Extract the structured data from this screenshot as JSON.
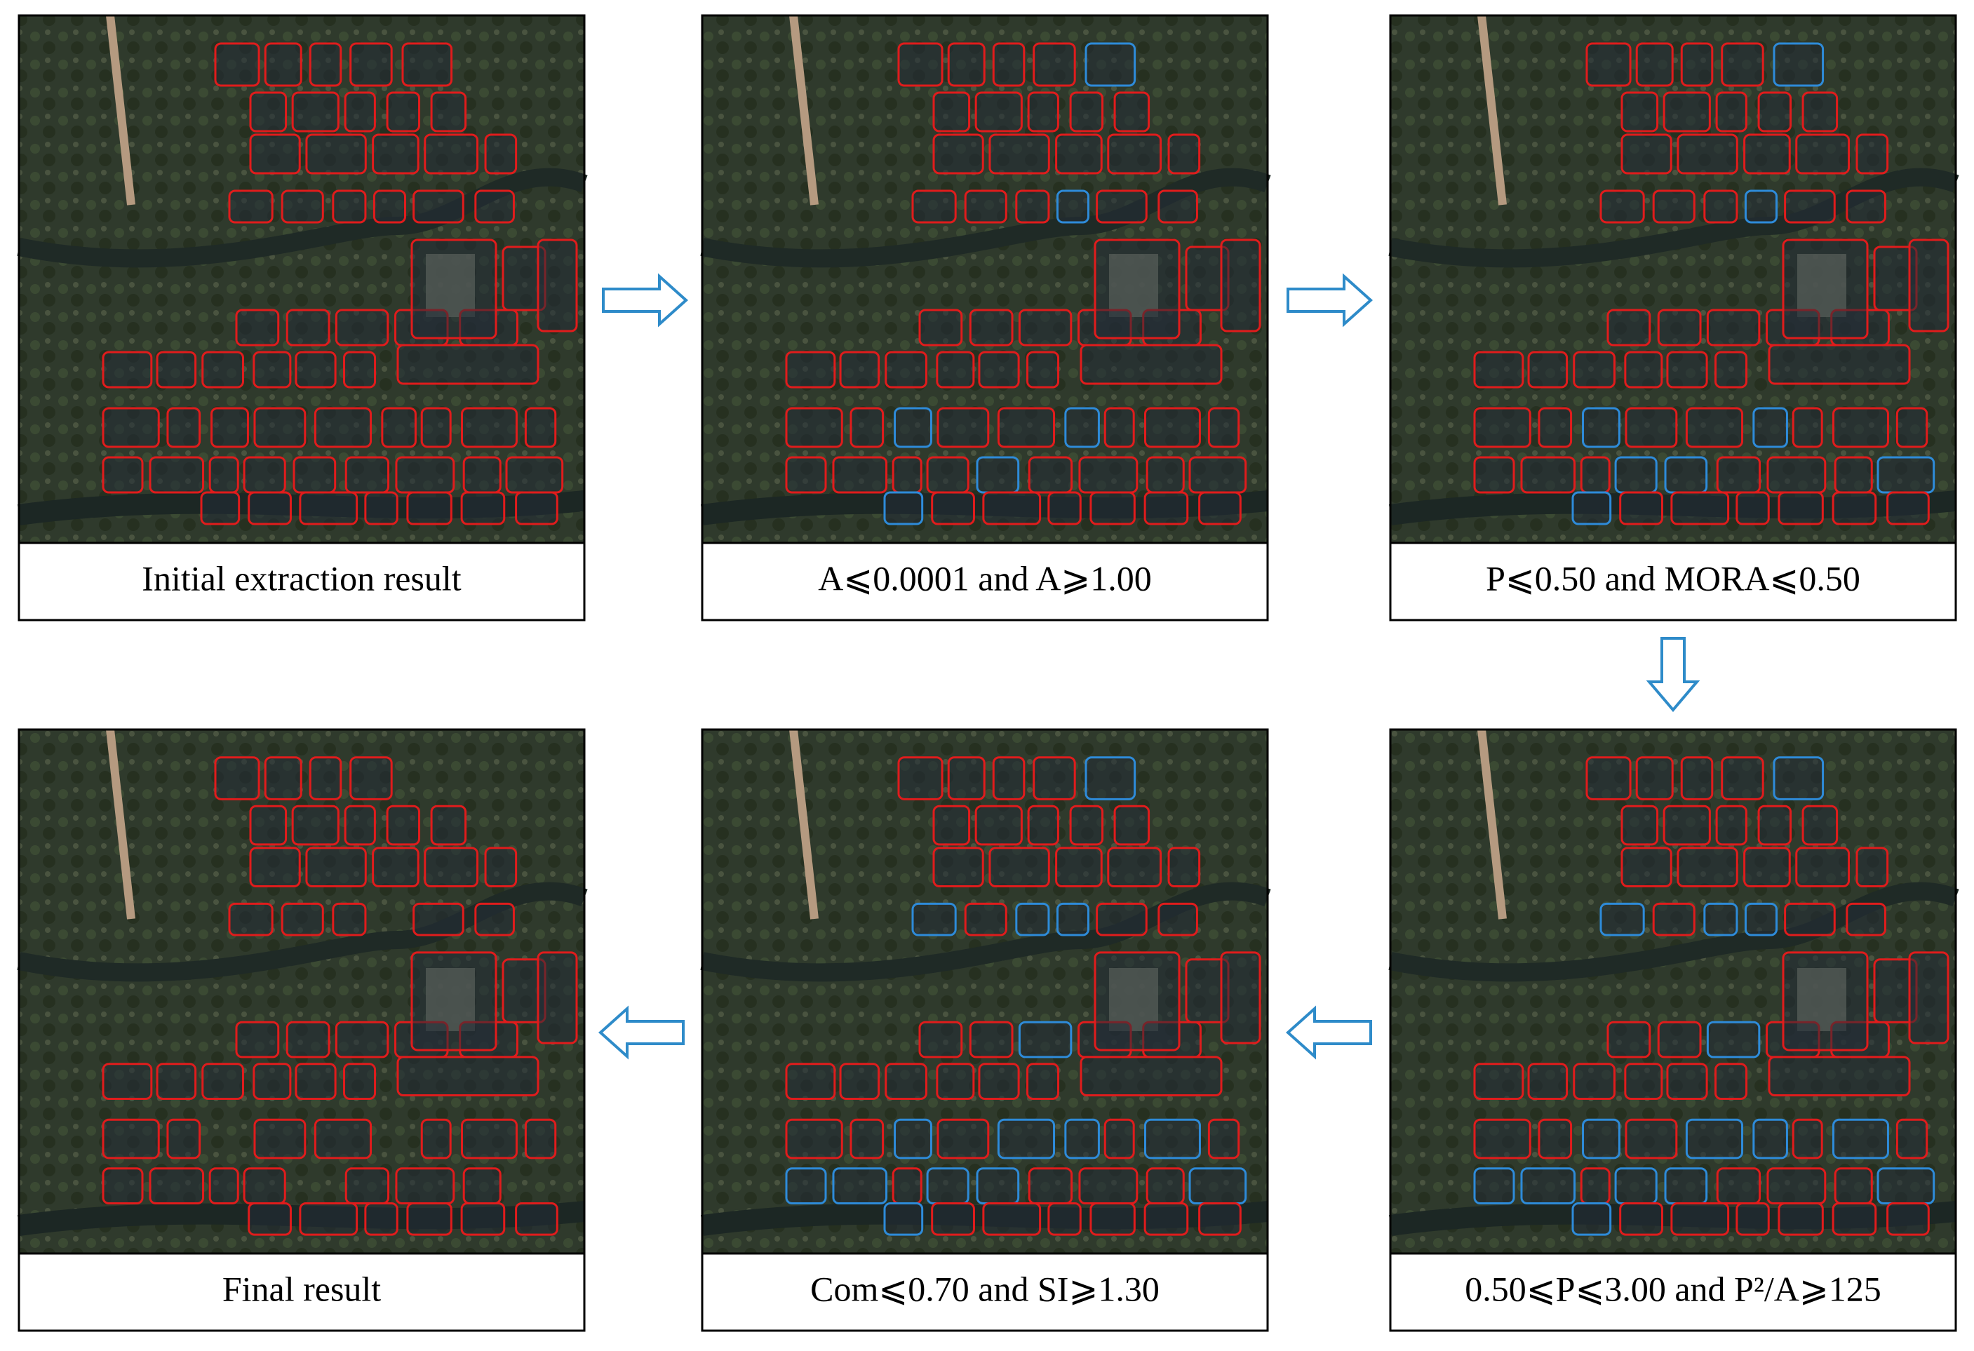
{
  "panels": [
    {
      "caption": "Initial extraction result"
    },
    {
      "caption": "A⩽0.0001 and A⩾1.00"
    },
    {
      "caption": "P⩽0.50 and MORA⩽0.50"
    },
    {
      "caption": "Final result"
    },
    {
      "caption": "Com⩽0.70 and SI⩾1.30"
    },
    {
      "caption": "0.50⩽P⩽3.00 and P²/A⩾125"
    }
  ]
}
